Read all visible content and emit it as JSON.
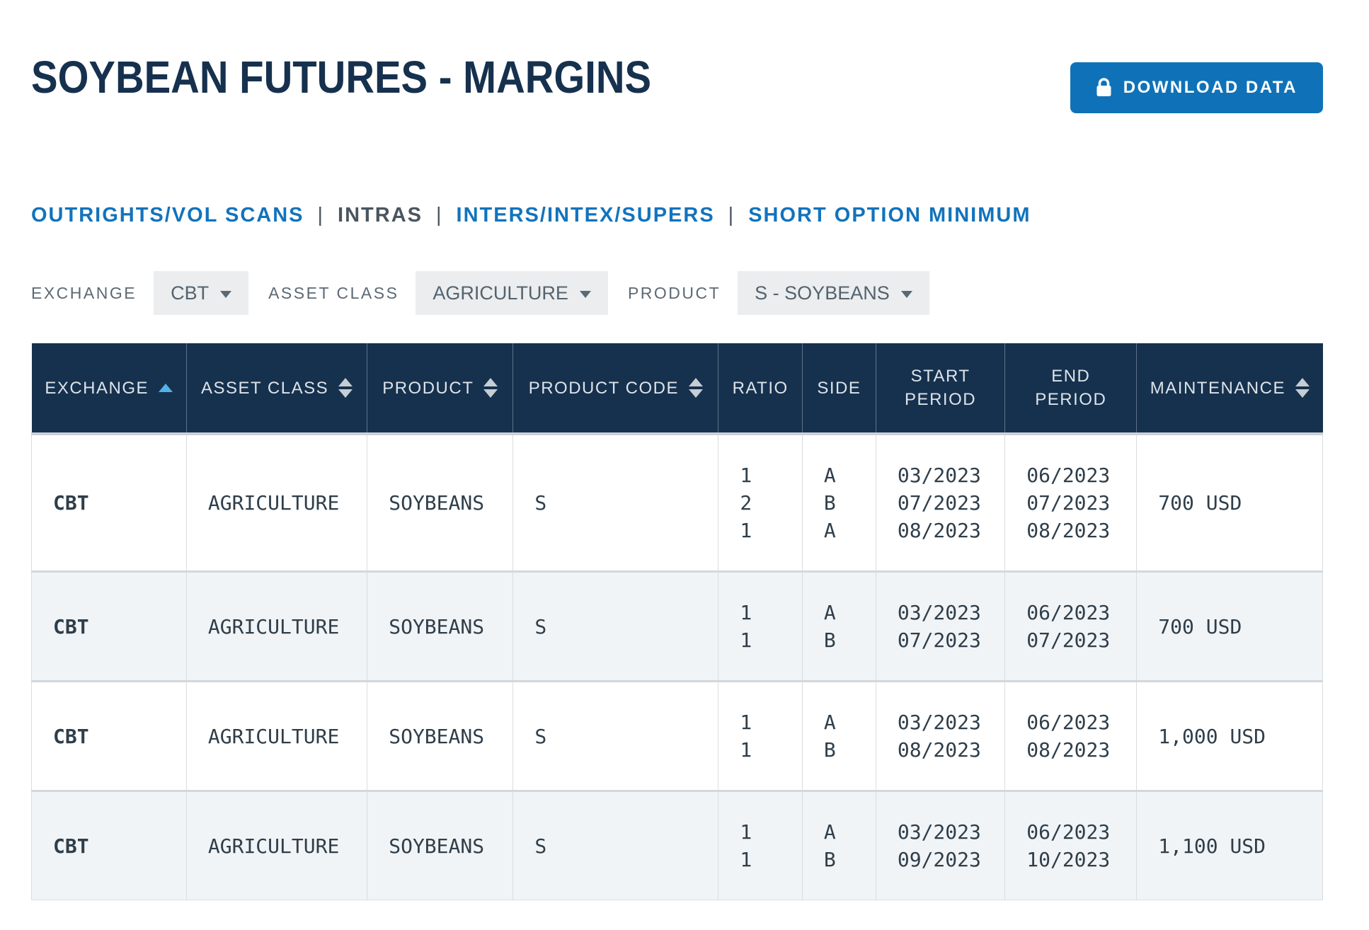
{
  "page": {
    "title": "SOYBEAN FUTURES - MARGINS"
  },
  "toolbar": {
    "download_label": "DOWNLOAD DATA",
    "download_icon": "lock-icon"
  },
  "nav": {
    "separator": "|",
    "items": [
      {
        "label": "OUTRIGHTS/VOL SCANS",
        "active": false
      },
      {
        "label": "INTRAS",
        "active": true
      },
      {
        "label": "INTERS/INTEX/SUPERS",
        "active": false
      },
      {
        "label": "SHORT OPTION MINIMUM",
        "active": false
      }
    ]
  },
  "filters": {
    "exchange": {
      "label": "EXCHANGE",
      "value": "CBT"
    },
    "asset_class": {
      "label": "ASSET CLASS",
      "value": "AGRICULTURE"
    },
    "product": {
      "label": "PRODUCT",
      "value": "S - SOYBEANS"
    }
  },
  "table": {
    "columns": [
      {
        "key": "exchange",
        "label": [
          "EXCHANGE"
        ],
        "sort": "asc",
        "sortable": true
      },
      {
        "key": "asset-class",
        "label": [
          "ASSET CLASS"
        ],
        "sort": "both",
        "sortable": true
      },
      {
        "key": "product",
        "label": [
          "PRODUCT"
        ],
        "sort": "both",
        "sortable": true
      },
      {
        "key": "product-code",
        "label": [
          "PRODUCT CODE"
        ],
        "sort": "both",
        "sortable": true
      },
      {
        "key": "ratio",
        "label": [
          "RATIO"
        ],
        "sort": "none",
        "sortable": false
      },
      {
        "key": "side",
        "label": [
          "SIDE"
        ],
        "sort": "none",
        "sortable": false
      },
      {
        "key": "start-period",
        "label": [
          "START",
          "PERIOD"
        ],
        "sort": "none",
        "sortable": false
      },
      {
        "key": "end-period",
        "label": [
          "END",
          "PERIOD"
        ],
        "sort": "none",
        "sortable": false
      },
      {
        "key": "maintenance",
        "label": [
          "MAINTENANCE"
        ],
        "sort": "both",
        "sortable": true
      }
    ],
    "rows": [
      {
        "cells": [
          [
            "CBT"
          ],
          [
            "AGRICULTURE"
          ],
          [
            "SOYBEANS"
          ],
          [
            "S"
          ],
          [
            "1",
            "2",
            "1"
          ],
          [
            "A",
            "B",
            "A"
          ],
          [
            "03/2023",
            "07/2023",
            "08/2023"
          ],
          [
            "06/2023",
            "07/2023",
            "08/2023"
          ],
          [
            "700 USD"
          ]
        ]
      },
      {
        "cells": [
          [
            "CBT"
          ],
          [
            "AGRICULTURE"
          ],
          [
            "SOYBEANS"
          ],
          [
            "S"
          ],
          [
            "1",
            "1"
          ],
          [
            "A",
            "B"
          ],
          [
            "03/2023",
            "07/2023"
          ],
          [
            "06/2023",
            "07/2023"
          ],
          [
            "700 USD"
          ]
        ]
      },
      {
        "cells": [
          [
            "CBT"
          ],
          [
            "AGRICULTURE"
          ],
          [
            "SOYBEANS"
          ],
          [
            "S"
          ],
          [
            "1",
            "1"
          ],
          [
            "A",
            "B"
          ],
          [
            "03/2023",
            "08/2023"
          ],
          [
            "06/2023",
            "08/2023"
          ],
          [
            "1,000 USD"
          ]
        ]
      },
      {
        "cells": [
          [
            "CBT"
          ],
          [
            "AGRICULTURE"
          ],
          [
            "SOYBEANS"
          ],
          [
            "S"
          ],
          [
            "1",
            "1"
          ],
          [
            "A",
            "B"
          ],
          [
            "03/2023",
            "09/2023"
          ],
          [
            "06/2023",
            "10/2023"
          ],
          [
            "1,100 USD"
          ]
        ]
      }
    ]
  },
  "colors": {
    "navy": "#16314E",
    "link_blue": "#1273BC",
    "button_blue": "#0F72B8",
    "sort_active_blue": "#52B2E8",
    "sort_inactive_gray": "#C6CDD3",
    "row_alt_background": "#F1F4F6",
    "cell_text": "#2F3E4A"
  }
}
